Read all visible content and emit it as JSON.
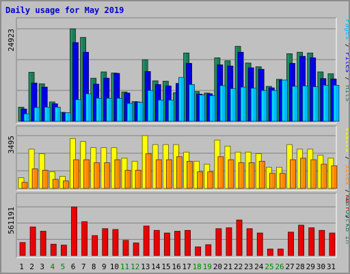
{
  "chart_data": {
    "type": "bar",
    "title": "Daily usage for May 2019",
    "colors": {
      "background": "#c0c0c0",
      "title": "#0000cc",
      "hits": "#1e7a55",
      "files": "#0000e0",
      "pages": "#00b8ff",
      "visits": "#ffff00",
      "sites": "#ff8800",
      "kbytes": "#e60000",
      "weekend_label": "#008000"
    },
    "categories": [
      "1",
      "2",
      "3",
      "4",
      "5",
      "6",
      "7",
      "8",
      "9",
      "10",
      "11",
      "12",
      "13",
      "14",
      "15",
      "16",
      "17",
      "18",
      "19",
      "20",
      "21",
      "22",
      "23",
      "24",
      "25",
      "26",
      "27",
      "28",
      "29",
      "30",
      "31"
    ],
    "weekend_days": [
      "4",
      "5",
      "11",
      "12",
      "18",
      "19",
      "25",
      "26"
    ],
    "panels": [
      {
        "ylabel_max": "24923",
        "ymax": 24923,
        "side_label": [
          {
            "text": "Pages",
            "color": "#00b8ff"
          },
          {
            "text": " / ",
            "color": "#000000"
          },
          {
            "text": "Files",
            "color": "#0000e0"
          },
          {
            "text": " / ",
            "color": "#000000"
          },
          {
            "text": "Hits",
            "color": "#1e7a55"
          }
        ],
        "series": [
          {
            "name": "Hits",
            "values": [
              3800,
              13200,
              10100,
              5200,
              2400,
              24923,
              22600,
              11600,
              13300,
              13000,
              7900,
              5300,
              16600,
              10900,
              10800,
              7700,
              18400,
              8000,
              7600,
              17100,
              16300,
              20200,
              15700,
              14700,
              9400,
              11300,
              18200,
              18600,
              18400,
              13300,
              12800
            ]
          },
          {
            "name": "Files",
            "values": [
              3300,
              10300,
              9200,
              4700,
              2300,
              21200,
              18600,
              10000,
              11600,
              12900,
              7600,
              5200,
              13400,
              9900,
              9500,
              10200,
              15600,
              7300,
              7400,
              15200,
              14900,
              18600,
              14400,
              14000,
              9000,
              11100,
              15600,
              17500,
              17100,
              11500,
              11400
            ]
          },
          {
            "name": "Pages",
            "values": [
              2000,
              3700,
              3800,
              3800,
              2300,
              5800,
              7400,
              6200,
              6200,
              6200,
              4800,
              5100,
              8300,
              5700,
              5700,
              11800,
              9900,
              7100,
              6900,
              9600,
              8800,
              9200,
              8900,
              8300,
              8300,
              11100,
              9400,
              9500,
              9300,
              9700,
              9700
            ]
          }
        ]
      },
      {
        "ylabel_max": "3495",
        "ymax": 3495,
        "side_label": [
          {
            "text": "Visits",
            "color": "#ffff00"
          },
          {
            "text": " / ",
            "color": "#000000"
          },
          {
            "text": "Sites",
            "color": "#ff8800"
          },
          {
            "text": " / ",
            "color": "#000000"
          },
          {
            "text": "kB Out",
            "color": "#1e7a55"
          }
        ],
        "series": [
          {
            "name": "Visits",
            "values": [
              700,
              2600,
              2300,
              1100,
              800,
              3300,
              3100,
              2700,
              2700,
              2700,
              2000,
              1800,
              3495,
              2900,
              2900,
              2900,
              2400,
              1800,
              1600,
              3200,
              2800,
              2400,
              2400,
              2300,
              1400,
              1400,
              2900,
              2600,
              2600,
              2200,
              2000
            ]
          },
          {
            "name": "Sites",
            "values": [
              400,
              1300,
              1200,
              600,
              500,
              1900,
              1900,
              1700,
              1700,
              1900,
              1200,
              1200,
              2300,
              1900,
              1900,
              2100,
              1800,
              1100,
              1100,
              2100,
              1900,
              1700,
              1700,
              1800,
              1000,
              1000,
              1900,
              2000,
              1900,
              1600,
              1500
            ]
          }
        ]
      },
      {
        "ylabel_max": "561191",
        "ymax": 561191,
        "side_label": [
          {
            "text": "kB F",
            "color": "#e60000"
          },
          {
            "text": " / ",
            "color": "#000000"
          },
          {
            "text": "kB In",
            "color": "#1e7a55"
          }
        ],
        "series": [
          {
            "name": "kB F",
            "values": [
              150000,
              330000,
              280000,
              130000,
              120000,
              561191,
              390000,
              230000,
              310000,
              300000,
              175000,
              145000,
              340000,
              290000,
              260000,
              280000,
              290000,
              100000,
              125000,
              310000,
              320000,
              410000,
              310000,
              260000,
              75000,
              75000,
              270000,
              350000,
              320000,
              290000,
              260000
            ]
          }
        ]
      }
    ]
  }
}
